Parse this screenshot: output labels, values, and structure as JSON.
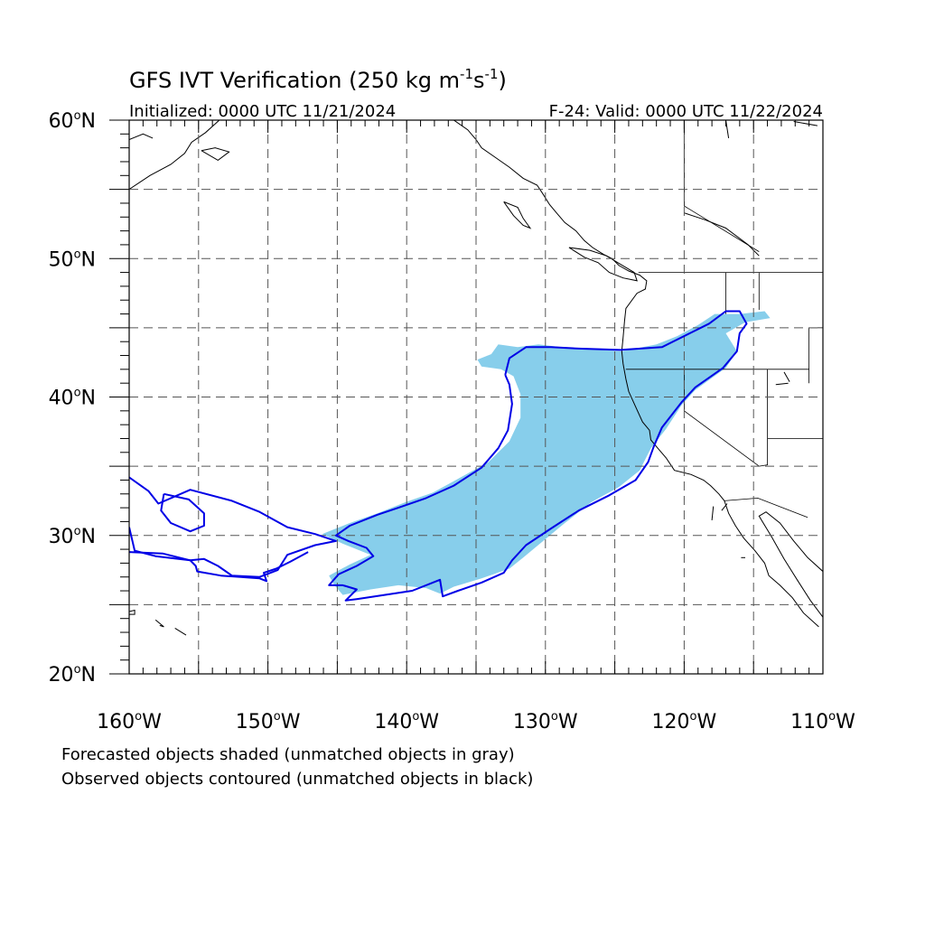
{
  "title": {
    "main": "GFS IVT Verification (250 kg m",
    "sup1": "-1",
    "mid": "s",
    "sup2": "-1",
    "end": ")"
  },
  "subtitle": {
    "left": "Initialized: 0000 UTC 11/21/2024",
    "right": "F-24: Valid: 0000 UTC 11/22/2024"
  },
  "map": {
    "lon_range": [
      -160,
      -110
    ],
    "lat_range": [
      20,
      60
    ],
    "lon_ticks": [
      {
        "lon": -160,
        "deg": "160",
        "hemi": "W"
      },
      {
        "lon": -150,
        "deg": "150",
        "hemi": "W"
      },
      {
        "lon": -140,
        "deg": "140",
        "hemi": "W"
      },
      {
        "lon": -130,
        "deg": "130",
        "hemi": "W"
      },
      {
        "lon": -120,
        "deg": "120",
        "hemi": "W"
      },
      {
        "lon": -110,
        "deg": "110",
        "hemi": "W"
      }
    ],
    "lat_ticks": [
      {
        "lat": 60,
        "deg": "60",
        "hemi": "N"
      },
      {
        "lat": 50,
        "deg": "50",
        "hemi": "N"
      },
      {
        "lat": 40,
        "deg": "40",
        "hemi": "N"
      },
      {
        "lat": 30,
        "deg": "30",
        "hemi": "N"
      },
      {
        "lat": 20,
        "deg": "20",
        "hemi": "N"
      }
    ],
    "grid_spacing_deg": 5,
    "gridlines": true,
    "colors": {
      "forecast_fill": "#87ceeb",
      "observed_contour": "#0000e6",
      "coastline": "#000000",
      "grid": "#555555"
    },
    "forecast_object": [
      [
        -133.4,
        43.8
      ],
      [
        -132.0,
        43.6
      ],
      [
        -130.5,
        43.8
      ],
      [
        -128.0,
        43.5
      ],
      [
        -126.0,
        43.4
      ],
      [
        -124.5,
        43.3
      ],
      [
        -122.0,
        43.8
      ],
      [
        -120.5,
        44.4
      ],
      [
        -119.0,
        45.2
      ],
      [
        -117.8,
        46.0
      ],
      [
        -116.0,
        46.0
      ],
      [
        -114.2,
        46.2
      ],
      [
        -113.8,
        45.7
      ],
      [
        -115.6,
        45.4
      ],
      [
        -117.0,
        44.6
      ],
      [
        -116.2,
        43.3
      ],
      [
        -117.0,
        42.1
      ],
      [
        -119.2,
        40.5
      ],
      [
        -120.2,
        39.4
      ],
      [
        -121.3,
        37.7
      ],
      [
        -122.4,
        36.3
      ],
      [
        -123.2,
        34.7
      ],
      [
        -124.7,
        33.5
      ],
      [
        -126.7,
        32.4
      ],
      [
        -128.6,
        30.9
      ],
      [
        -130.4,
        29.4
      ],
      [
        -131.6,
        28.4
      ],
      [
        -132.6,
        27.6
      ],
      [
        -134.6,
        26.9
      ],
      [
        -136.6,
        26.3
      ],
      [
        -137.6,
        25.8
      ],
      [
        -138.6,
        26.2
      ],
      [
        -140.6,
        26.4
      ],
      [
        -142.6,
        26.1
      ],
      [
        -144.6,
        25.7
      ],
      [
        -145.2,
        26.4
      ],
      [
        -145.6,
        27.1
      ],
      [
        -144.1,
        27.9
      ],
      [
        -142.6,
        28.6
      ],
      [
        -144.6,
        29.4
      ],
      [
        -146.1,
        30.1
      ],
      [
        -144.1,
        30.9
      ],
      [
        -142.1,
        31.6
      ],
      [
        -140.1,
        32.4
      ],
      [
        -138.1,
        33.1
      ],
      [
        -136.1,
        34.2
      ],
      [
        -134.1,
        35.3
      ],
      [
        -132.6,
        36.8
      ],
      [
        -131.8,
        38.5
      ],
      [
        -131.8,
        40.2
      ],
      [
        -132.3,
        41.5
      ],
      [
        -133.2,
        42.0
      ],
      [
        -134.6,
        42.2
      ],
      [
        -134.9,
        42.7
      ],
      [
        -133.9,
        43.1
      ]
    ],
    "observed_contours": [
      [
        [
          -132.9,
          41.6
        ],
        [
          -132.6,
          42.8
        ],
        [
          -131.4,
          43.6
        ],
        [
          -129.6,
          43.6
        ],
        [
          -127.6,
          43.5
        ],
        [
          -124.6,
          43.4
        ],
        [
          -121.6,
          43.6
        ],
        [
          -119.6,
          44.6
        ],
        [
          -118.2,
          45.3
        ],
        [
          -117.0,
          46.2
        ],
        [
          -116.0,
          46.2
        ],
        [
          -115.5,
          45.3
        ],
        [
          -116.0,
          44.6
        ],
        [
          -116.2,
          43.3
        ],
        [
          -117.2,
          42.1
        ],
        [
          -119.2,
          40.7
        ],
        [
          -120.2,
          39.6
        ],
        [
          -121.6,
          37.8
        ],
        [
          -122.2,
          36.4
        ],
        [
          -122.6,
          35.3
        ],
        [
          -123.5,
          34.0
        ],
        [
          -125.4,
          32.9
        ],
        [
          -127.6,
          31.8
        ],
        [
          -129.6,
          30.5
        ],
        [
          -131.4,
          29.3
        ],
        [
          -132.4,
          28.2
        ],
        [
          -133.0,
          27.3
        ],
        [
          -134.6,
          26.6
        ],
        [
          -136.3,
          26.0
        ],
        [
          -137.4,
          25.6
        ],
        [
          -137.6,
          26.8
        ],
        [
          -139.6,
          26.0
        ],
        [
          -141.6,
          25.7
        ],
        [
          -143.6,
          25.4
        ],
        [
          -144.4,
          25.3
        ],
        [
          -143.6,
          26.1
        ],
        [
          -144.6,
          26.4
        ],
        [
          -145.6,
          26.4
        ],
        [
          -144.9,
          27.2
        ],
        [
          -143.6,
          27.8
        ],
        [
          -142.4,
          28.5
        ],
        [
          -142.9,
          29.1
        ],
        [
          -144.2,
          29.6
        ],
        [
          -145.1,
          30.0
        ],
        [
          -144.1,
          30.7
        ],
        [
          -142.1,
          31.5
        ],
        [
          -140.6,
          32.0
        ],
        [
          -138.6,
          32.7
        ],
        [
          -136.6,
          33.6
        ],
        [
          -134.6,
          34.9
        ],
        [
          -133.4,
          36.3
        ],
        [
          -132.7,
          37.6
        ],
        [
          -132.4,
          39.5
        ],
        [
          -132.6,
          40.9
        ],
        [
          -132.9,
          41.6
        ]
      ],
      [
        [
          -160,
          34.2
        ],
        [
          -158.6,
          33.2
        ],
        [
          -157.9,
          32.3
        ],
        [
          -155.6,
          33.3
        ],
        [
          -152.6,
          32.5
        ],
        [
          -150.6,
          31.7
        ],
        [
          -148.6,
          30.6
        ],
        [
          -146.6,
          30.1
        ],
        [
          -145.1,
          29.6
        ],
        [
          -146.6,
          29.3
        ],
        [
          -148.6,
          28.6
        ],
        [
          -149.3,
          27.5
        ],
        [
          -150.6,
          27.0
        ],
        [
          -152.6,
          27.1
        ],
        [
          -153.6,
          27.8
        ],
        [
          -154.6,
          28.3
        ],
        [
          -155.6,
          28.2
        ],
        [
          -157.6,
          28.7
        ],
        [
          -160,
          28.8
        ]
      ],
      [
        [
          -157.5,
          33.0
        ],
        [
          -155.7,
          32.6
        ],
        [
          -154.6,
          31.6
        ],
        [
          -154.6,
          30.7
        ],
        [
          -155.1,
          30.5
        ],
        [
          -155.6,
          30.3
        ],
        [
          -157.0,
          30.9
        ],
        [
          -157.7,
          31.8
        ],
        [
          -157.5,
          33.0
        ]
      ],
      [
        [
          -160,
          30.6
        ],
        [
          -159.6,
          28.9
        ],
        [
          -158.1,
          28.5
        ],
        [
          -155.6,
          28.2
        ],
        [
          -155.2,
          27.8
        ],
        [
          -155.1,
          27.4
        ],
        [
          -153.4,
          27.1
        ],
        [
          -150.6,
          26.9
        ],
        [
          -150.1,
          26.7
        ],
        [
          -150.3,
          27.3
        ],
        [
          -149.4,
          27.6
        ],
        [
          -148.4,
          28.1
        ],
        [
          -147.1,
          28.8
        ]
      ]
    ],
    "coastlines": [
      [
        [
          -136.6,
          60
        ],
        [
          -135.6,
          59.3
        ],
        [
          -135.0,
          58.6
        ],
        [
          -134.6,
          58.0
        ],
        [
          -133.6,
          57.3
        ],
        [
          -132.6,
          56.6
        ],
        [
          -131.6,
          55.8
        ],
        [
          -130.6,
          55.3
        ],
        [
          -130.2,
          54.7
        ],
        [
          -129.7,
          53.9
        ],
        [
          -129.2,
          53.3
        ],
        [
          -128.6,
          52.6
        ],
        [
          -127.8,
          52.0
        ],
        [
          -127.2,
          51.3
        ],
        [
          -126.6,
          50.8
        ],
        [
          -125.8,
          50.3
        ],
        [
          -125.2,
          50.0
        ],
        [
          -124.7,
          49.5
        ],
        [
          -124.0,
          49.1
        ],
        [
          -123.2,
          48.8
        ],
        [
          -122.7,
          48.4
        ],
        [
          -122.8,
          47.8
        ],
        [
          -123.4,
          47.5
        ],
        [
          -124.2,
          46.4
        ],
        [
          -124.3,
          45.5
        ],
        [
          -124.4,
          44.3
        ],
        [
          -124.5,
          43.3
        ],
        [
          -124.4,
          42.4
        ],
        [
          -124.2,
          41.3
        ],
        [
          -124.0,
          40.4
        ],
        [
          -123.5,
          39.3
        ],
        [
          -123.0,
          38.2
        ],
        [
          -122.5,
          37.6
        ],
        [
          -122.4,
          36.9
        ],
        [
          -121.9,
          36.3
        ],
        [
          -121.3,
          35.6
        ],
        [
          -120.7,
          34.7
        ],
        [
          -119.5,
          34.4
        ],
        [
          -118.6,
          34.0
        ],
        [
          -118.1,
          33.6
        ],
        [
          -117.5,
          33.0
        ],
        [
          -117.1,
          32.5
        ],
        [
          -116.8,
          31.6
        ],
        [
          -116.3,
          30.7
        ],
        [
          -115.7,
          29.8
        ],
        [
          -114.9,
          28.9
        ],
        [
          -114.2,
          28.0
        ],
        [
          -113.9,
          27.1
        ],
        [
          -113.1,
          26.4
        ],
        [
          -112.2,
          25.5
        ],
        [
          -111.4,
          24.4
        ],
        [
          -110.3,
          23.4
        ]
      ],
      [
        [
          -110,
          24.1
        ],
        [
          -110.9,
          25.3
        ],
        [
          -111.8,
          26.7
        ],
        [
          -112.8,
          28.3
        ],
        [
          -113.7,
          29.9
        ],
        [
          -114.6,
          31.4
        ],
        [
          -114.1,
          31.7
        ],
        [
          -113.1,
          30.9
        ],
        [
          -112.1,
          29.6
        ],
        [
          -111.1,
          28.4
        ],
        [
          -110,
          27.4
        ]
      ],
      [
        [
          -128.3,
          50.8
        ],
        [
          -127.2,
          50.1
        ],
        [
          -126.2,
          49.7
        ],
        [
          -125.4,
          49.0
        ],
        [
          -124.4,
          48.6
        ],
        [
          -123.4,
          48.4
        ],
        [
          -123.6,
          49.0
        ],
        [
          -124.6,
          49.6
        ],
        [
          -125.6,
          50.2
        ],
        [
          -126.8,
          50.6
        ],
        [
          -128.3,
          50.8
        ]
      ],
      [
        [
          -133.0,
          54.1
        ],
        [
          -132.0,
          53.7
        ],
        [
          -131.6,
          52.9
        ],
        [
          -131.1,
          52.2
        ],
        [
          -131.6,
          52.4
        ],
        [
          -132.3,
          53.1
        ],
        [
          -133.0,
          54.1
        ]
      ],
      [
        [
          -160,
          55.0
        ],
        [
          -158.5,
          56.0
        ],
        [
          -157.0,
          56.8
        ],
        [
          -156.0,
          57.6
        ],
        [
          -155.5,
          58.4
        ],
        [
          -154.5,
          59.1
        ],
        [
          -153.5,
          60
        ]
      ],
      [
        [
          -160,
          58.6
        ],
        [
          -159.0,
          59.0
        ],
        [
          -158.3,
          58.7
        ]
      ],
      [
        [
          -154.8,
          57.8
        ],
        [
          -153.6,
          57.1
        ],
        [
          -152.8,
          57.7
        ],
        [
          -153.8,
          58.0
        ],
        [
          -154.8,
          57.8
        ]
      ],
      [
        [
          -117.0,
          60
        ],
        [
          -116.8,
          58.7
        ]
      ],
      [
        [
          -120.0,
          53.3
        ],
        [
          -118.5,
          52.8
        ],
        [
          -117.0,
          52.2
        ],
        [
          -115.4,
          51.0
        ],
        [
          -114.6,
          50.2
        ]
      ],
      [
        [
          -112.1,
          59.9
        ],
        [
          -110.4,
          59.6
        ]
      ],
      [
        [
          -160,
          24.5
        ],
        [
          -159.6,
          24.6
        ],
        [
          -159.6,
          24.3
        ],
        [
          -160,
          24.3
        ]
      ],
      [
        [
          -158.1,
          23.9
        ],
        [
          -157.5,
          23.4
        ],
        [
          -157.8,
          23.5
        ]
      ],
      [
        [
          -156.7,
          23.3
        ],
        [
          -155.9,
          22.8
        ]
      ],
      [
        [
          -115.9,
          28.4
        ],
        [
          -115.6,
          28.4
        ]
      ],
      [
        [
          -113.4,
          40.9
        ],
        [
          -112.5,
          41.0
        ]
      ],
      [
        [
          -112.8,
          41.8
        ],
        [
          -112.4,
          41.1
        ]
      ],
      [
        [
          -118.0,
          31.1
        ],
        [
          -117.9,
          32.1
        ]
      ],
      [
        [
          -117.3,
          31.8
        ],
        [
          -116.9,
          32.3
        ]
      ]
    ],
    "borders": [
      [
        [
          -123.3,
          49.0
        ],
        [
          -110,
          49.0
        ]
      ],
      [
        [
          -124.2,
          42.0
        ],
        [
          -111.0,
          42.0
        ]
      ],
      [
        [
          -117.0,
          46.0
        ],
        [
          -117.0,
          49.0
        ]
      ],
      [
        [
          -114.6,
          49.0
        ],
        [
          -114.6,
          46.3
        ]
      ],
      [
        [
          -120.0,
          42.0
        ],
        [
          -120.0,
          39.0
        ],
        [
          -114.6,
          35.0
        ]
      ],
      [
        [
          -114.0,
          42.0
        ],
        [
          -114.0,
          35.1
        ],
        [
          -114.6,
          35.0
        ]
      ],
      [
        [
          -114.0,
          37.0
        ],
        [
          -110,
          37.0
        ]
      ],
      [
        [
          -117.1,
          32.5
        ],
        [
          -114.7,
          32.7
        ],
        [
          -111.1,
          31.3
        ]
      ],
      [
        [
          -110,
          45.0
        ],
        [
          -111.0,
          45.0
        ],
        [
          -111.0,
          41.0
        ]
      ],
      [
        [
          -120.0,
          60
        ],
        [
          -120.0,
          53.8
        ],
        [
          -114.6,
          50.5
        ]
      ]
    ]
  },
  "legend": {
    "line1": "Forecasted objects shaded (unmatched objects in gray)",
    "line2": "Observed objects contoured (unmatched objects in black)"
  }
}
